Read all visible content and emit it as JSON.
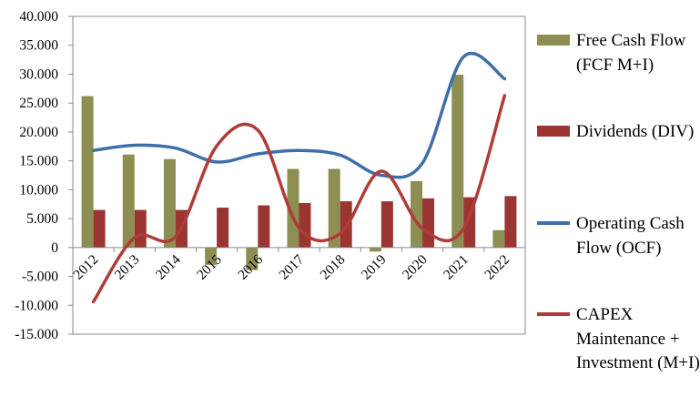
{
  "chart_data": {
    "type": "bar+line",
    "categories": [
      "2012",
      "2013",
      "2014",
      "2015",
      "2016",
      "2017",
      "2018",
      "2019",
      "2020",
      "2021",
      "2022"
    ],
    "ylim": [
      -15000,
      40000
    ],
    "yticks": [
      -15000,
      -10000,
      -5000,
      0,
      5000,
      10000,
      15000,
      20000,
      25000,
      30000,
      35000,
      40000
    ],
    "ytick_labels": [
      "-15.000",
      "-10.000",
      "-5.000",
      "0",
      "5.000",
      "10.000",
      "15.000",
      "20.000",
      "25.000",
      "30.000",
      "35.000",
      "40.000"
    ],
    "grid": false,
    "legend_position": "right",
    "series": [
      {
        "name": "Free Cash Flow (FCF M+I)",
        "type": "bar",
        "color": "#8c8e52",
        "values": [
          26200,
          16100,
          15300,
          -3000,
          -3900,
          13600,
          13600,
          -700,
          11500,
          29900,
          3000
        ]
      },
      {
        "name": "Dividends (DIV)",
        "type": "bar",
        "color": "#9b3532",
        "values": [
          6500,
          6500,
          6500,
          6900,
          7300,
          7700,
          8000,
          8000,
          8500,
          8700,
          8900
        ]
      },
      {
        "name": "Operating Cash Flow (OCF)",
        "type": "line",
        "color": "#3f6fa8",
        "values": [
          16800,
          17700,
          17200,
          14800,
          16200,
          16800,
          16000,
          12500,
          14600,
          33000,
          29200
        ]
      },
      {
        "name": "CAPEX Maintenance + Investment (M+I)",
        "type": "line",
        "color": "#b03c38",
        "values": [
          -9400,
          1700,
          1900,
          17600,
          20300,
          3400,
          2400,
          13200,
          3300,
          3300,
          26300
        ]
      }
    ]
  },
  "legend": {
    "items": [
      {
        "label": "Free Cash Flow (FCF M+I)",
        "swatch": "bar",
        "color": "#8c8e52"
      },
      {
        "label": "Dividends (DIV)",
        "swatch": "bar",
        "color": "#9b3532"
      },
      {
        "label": "Operating Cash Flow (OCF)",
        "swatch": "line",
        "color": "#3f6fa8"
      },
      {
        "label": "CAPEX Maintenance + Investment (M+I)",
        "swatch": "line",
        "color": "#b03c38"
      }
    ]
  }
}
